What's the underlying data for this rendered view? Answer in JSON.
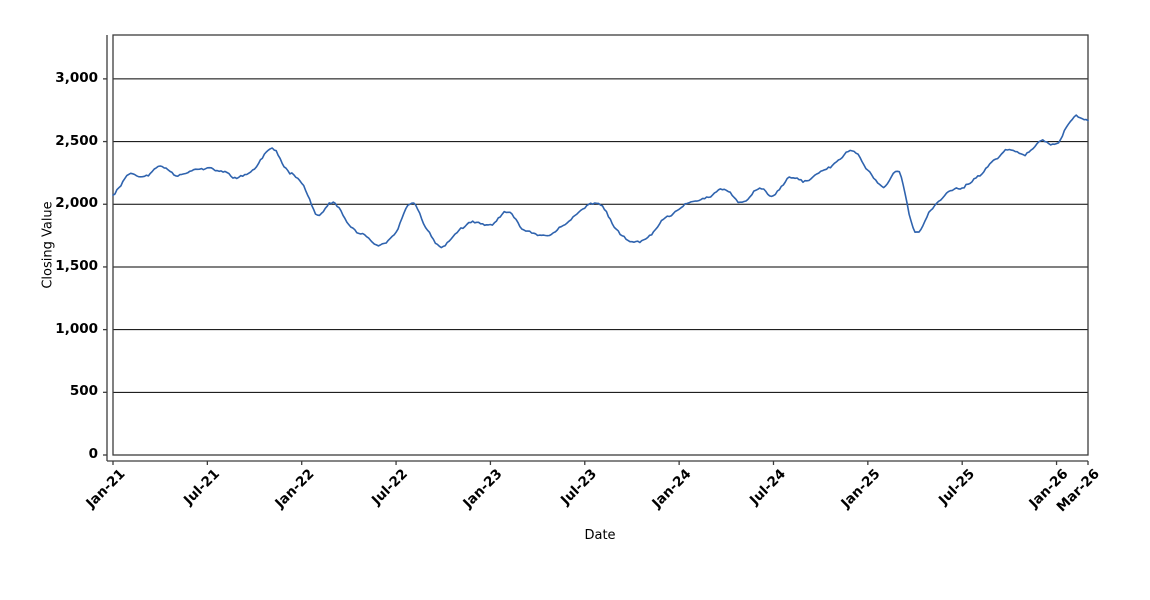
{
  "chart_data": {
    "type": "line",
    "title": "",
    "xlabel": "Date",
    "ylabel": "Closing Value",
    "x_start_month": "Jan-2021",
    "x_end_month": "Mar-2026",
    "x_interval": "monthly",
    "ylim": [
      0,
      3350
    ],
    "grid": "horizontal",
    "legend": "none",
    "colors": {
      "line": "#2f63ae",
      "grid": "#000000",
      "frame": "#3c3c3c",
      "axis": "#3c3c3c",
      "background": "#ffffff"
    },
    "yticks": [
      {
        "value": 0,
        "label": "0"
      },
      {
        "value": 500,
        "label": "500"
      },
      {
        "value": 1000,
        "label": "1,000"
      },
      {
        "value": 1500,
        "label": "1,500"
      },
      {
        "value": 2000,
        "label": "2,000"
      },
      {
        "value": 2500,
        "label": "2,500"
      },
      {
        "value": 3000,
        "label": "3,000"
      }
    ],
    "xticks": [
      {
        "month_index": 0,
        "label": "Jan-21"
      },
      {
        "month_index": 6,
        "label": "Jul-21"
      },
      {
        "month_index": 12,
        "label": "Jan-22"
      },
      {
        "month_index": 18,
        "label": "Jul-22"
      },
      {
        "month_index": 24,
        "label": "Jan-23"
      },
      {
        "month_index": 30,
        "label": "Jul-23"
      },
      {
        "month_index": 36,
        "label": "Jan-24"
      },
      {
        "month_index": 42,
        "label": "Jul-24"
      },
      {
        "month_index": 48,
        "label": "Jan-25"
      },
      {
        "month_index": 54,
        "label": "Jul-25"
      },
      {
        "month_index": 60,
        "label": "Jan-26"
      },
      {
        "month_index": 62,
        "label": "Mar-26"
      }
    ],
    "series": [
      {
        "name": "Closing Value",
        "color": "#2f63ae",
        "cadence": "monthly estimates read from chart, Jan-2021 through Mar-2026",
        "values": [
          2080,
          2250,
          2220,
          2300,
          2250,
          2290,
          2280,
          2250,
          2210,
          2280,
          2430,
          2280,
          2190,
          1920,
          2010,
          1830,
          1740,
          1640,
          1760,
          1990,
          1780,
          1670,
          1800,
          1840,
          1820,
          1930,
          1800,
          1760,
          1780,
          1850,
          1960,
          2000,
          1800,
          1690,
          1730,
          1860,
          1940,
          2020,
          2060,
          2100,
          1990,
          2120,
          2060,
          2200,
          2170,
          2250,
          2320,
          2430,
          2280,
          2150,
          2260,
          1790,
          1940,
          2090,
          2140,
          2230,
          2350,
          2450,
          2400,
          2490,
          2480,
          2680,
          2650
        ]
      }
    ],
    "rendering": {
      "noise_seed": 11,
      "steps_per_month": 8,
      "drift_decay": 0.9,
      "drift_step": 20,
      "jitter": 10
    }
  }
}
